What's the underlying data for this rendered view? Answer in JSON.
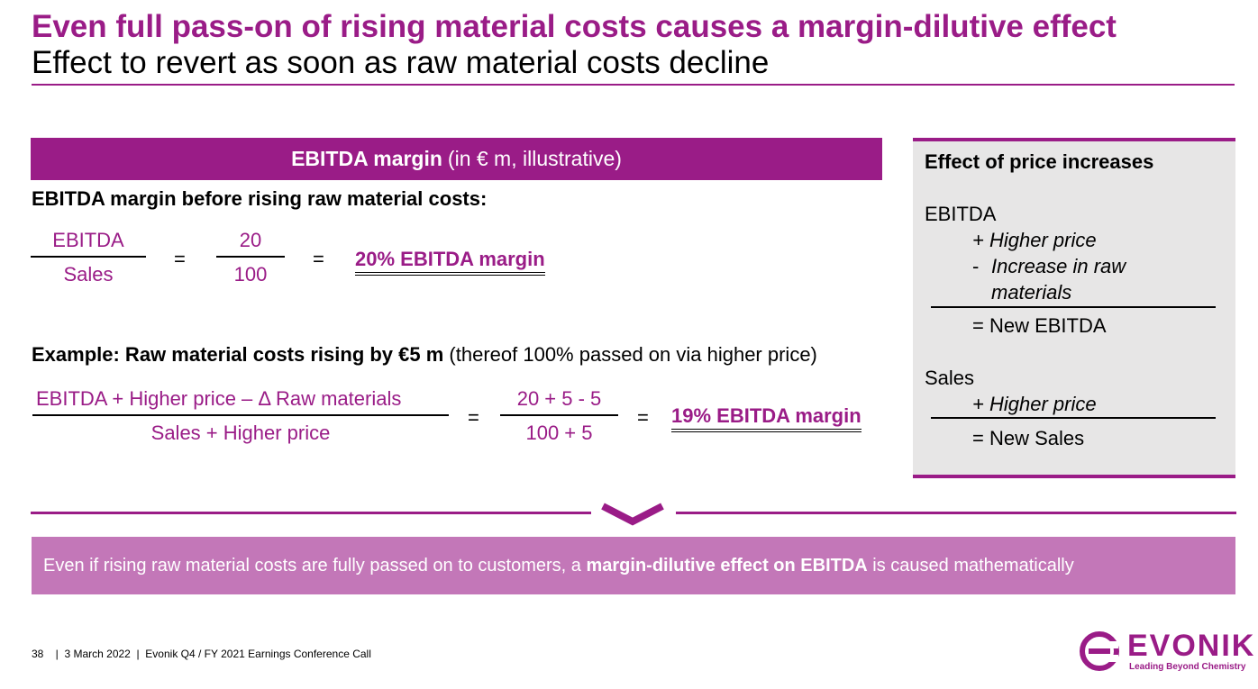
{
  "header": {
    "title": "Even full pass-on of rising material costs causes a margin-dilutive effect",
    "subtitle": "Effect to revert as soon as raw material costs decline"
  },
  "panel": {
    "header_bold": "EBITDA margin",
    "header_rest": "(in € m, illustrative)",
    "before": {
      "heading": "EBITDA margin before rising raw material costs:",
      "numerator_label": "EBITDA",
      "denominator_label": "Sales",
      "equals_1": "=",
      "numerator_value": "20",
      "denominator_value": "100",
      "equals_2": "=",
      "result": "20% EBITDA margin"
    },
    "example": {
      "heading_bold": "Example: Raw material costs rising by €5 m",
      "heading_rest": "(thereof 100% passed on via higher price)",
      "numerator_label": "EBITDA + Higher price – Δ Raw materials",
      "denominator_label": "Sales + Higher price",
      "equals_1": "=",
      "numerator_value": "20 + 5 - 5",
      "denominator_value": "100 + 5",
      "equals_2": "=",
      "result": "19% EBITDA margin"
    }
  },
  "sidebox": {
    "title": "Effect of price increases",
    "ebitda_label": "EBITDA",
    "ebitda_plus": "+ Higher price",
    "ebitda_minus_sign": "-",
    "ebitda_minus_line1": "Increase in raw",
    "ebitda_minus_line2": "materials",
    "ebitda_result": "= New EBITDA",
    "sales_label": "Sales",
    "sales_plus": "+ Higher price",
    "sales_result": "= New Sales"
  },
  "conclusion": {
    "text_before": "Even if rising raw material costs are fully passed on to customers, a",
    "text_bold": "margin-dilutive effect on EBITDA",
    "text_after": "is caused mathematically"
  },
  "footer": {
    "text": "38    |  3 March 2022  |  Evonik Q4 / FY 2021 Earnings Conference Call"
  },
  "logo": {
    "wordmark": "EVONIK",
    "tagline": "Leading Beyond Chemistry"
  },
  "colors": {
    "brand_purple": "#9a1c87",
    "light_purple": "#c377b8",
    "box_gray": "#e7e6e6"
  }
}
